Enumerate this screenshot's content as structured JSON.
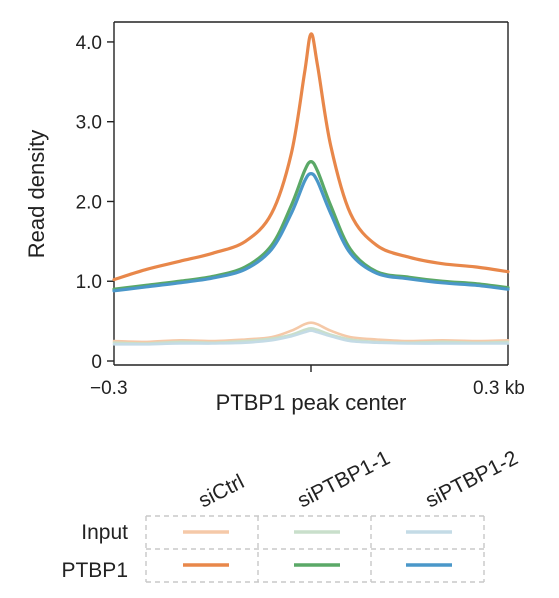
{
  "chart_data": {
    "type": "line",
    "xlabel": "PTBP1 peak center",
    "ylabel": "Read density",
    "xlim": [
      -0.3,
      0.3
    ],
    "ylim": [
      -0.05,
      4.25
    ],
    "x_tick_labels": {
      "left": "−0.3",
      "right": "0.3 kb"
    },
    "y_ticks": [
      0,
      1.0,
      2.0,
      3.0,
      4.0
    ],
    "y_tick_labels": [
      "0",
      "1.0",
      "2.0",
      "3.0",
      "4.0"
    ],
    "grid": false,
    "x": [
      -0.3,
      -0.25,
      -0.2,
      -0.15,
      -0.1,
      -0.06,
      -0.03,
      -0.01,
      0.0,
      0.01,
      0.03,
      0.06,
      0.1,
      0.15,
      0.2,
      0.25,
      0.3
    ],
    "series": [
      {
        "name": "PTBP1 siCtrl",
        "color": "#e8874a",
        "values": [
          1.02,
          1.15,
          1.25,
          1.35,
          1.5,
          1.85,
          2.6,
          3.6,
          4.1,
          3.7,
          2.7,
          1.85,
          1.45,
          1.3,
          1.22,
          1.18,
          1.12
        ]
      },
      {
        "name": "PTBP1 siPTBP1-1",
        "color": "#5aa867",
        "values": [
          0.9,
          0.95,
          1.0,
          1.06,
          1.18,
          1.45,
          1.95,
          2.38,
          2.5,
          2.38,
          1.95,
          1.4,
          1.12,
          1.05,
          1.0,
          0.97,
          0.92
        ]
      },
      {
        "name": "PTBP1 siPTBP1-2",
        "color": "#4a97c9",
        "values": [
          0.88,
          0.93,
          0.98,
          1.04,
          1.15,
          1.4,
          1.85,
          2.25,
          2.35,
          2.25,
          1.85,
          1.35,
          1.1,
          1.03,
          0.98,
          0.95,
          0.9
        ]
      },
      {
        "name": "Input siCtrl",
        "color": "#f5c9a8",
        "values": [
          0.25,
          0.24,
          0.26,
          0.25,
          0.27,
          0.3,
          0.38,
          0.46,
          0.48,
          0.46,
          0.38,
          0.3,
          0.27,
          0.25,
          0.26,
          0.25,
          0.26
        ]
      },
      {
        "name": "Input siPTBP1-1",
        "color": "#c9dfcb",
        "values": [
          0.23,
          0.22,
          0.24,
          0.23,
          0.25,
          0.28,
          0.33,
          0.39,
          0.41,
          0.39,
          0.33,
          0.27,
          0.24,
          0.23,
          0.24,
          0.23,
          0.24
        ]
      },
      {
        "name": "Input siPTBP1-2",
        "color": "#c4dbe6",
        "values": [
          0.21,
          0.21,
          0.22,
          0.22,
          0.23,
          0.26,
          0.31,
          0.36,
          0.38,
          0.36,
          0.31,
          0.25,
          0.23,
          0.22,
          0.22,
          0.22,
          0.22
        ]
      }
    ],
    "legend": {
      "columns": [
        "siCtrl",
        "siPTBP1-1",
        "siPTBP1-2"
      ],
      "rows": [
        "Input",
        "PTBP1"
      ],
      "colors": [
        [
          "#f5c9a8",
          "#c9dfcb",
          "#c4dbe6"
        ],
        [
          "#e8874a",
          "#5aa867",
          "#4a97c9"
        ]
      ],
      "placement": "below"
    }
  }
}
